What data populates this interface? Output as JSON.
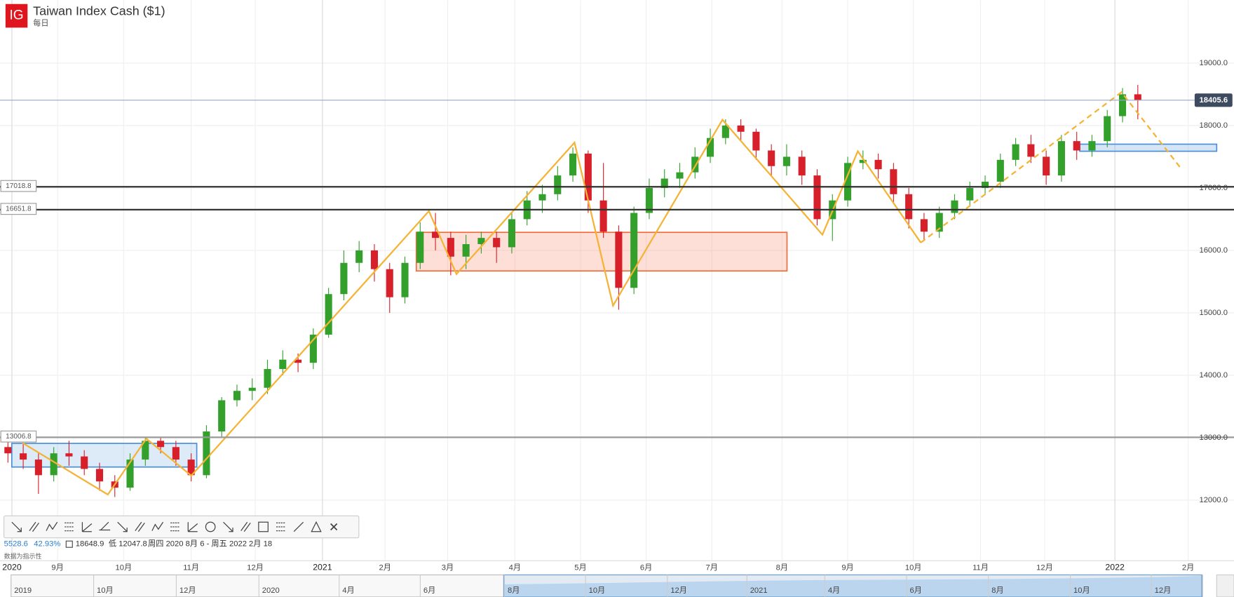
{
  "header": {
    "logo": "IG",
    "title": "Taiwan Index Cash ($1)",
    "interval": "每日"
  },
  "chart_data": {
    "type": "candlestick",
    "open": [
      12850,
      12750,
      12650,
      12400,
      12750,
      12700,
      12500,
      12300,
      12200,
      12650,
      12950,
      12850,
      12650,
      12400,
      13100,
      13600,
      13750,
      13800,
      14100,
      14250,
      14200,
      14650,
      15300,
      15800,
      16000,
      15700,
      15250,
      15800,
      16300,
      16200,
      15900,
      16100,
      16200,
      16050,
      16500,
      16800,
      16900,
      17200,
      17550,
      16800,
      16300,
      15400,
      16600,
      17000,
      17150,
      17250,
      17500,
      17800,
      18000,
      17900,
      17600,
      17350,
      17500,
      17200,
      16500,
      16800,
      17400,
      17450,
      17300,
      16900,
      16500,
      16300,
      16600,
      16800,
      17000,
      17100,
      17450,
      17700,
      17500,
      17200,
      17750,
      17600,
      17750,
      18150,
      18500
    ],
    "high": [
      12950,
      12900,
      12750,
      12850,
      12950,
      12800,
      12600,
      12400,
      12750,
      13000,
      13000,
      12950,
      12750,
      13200,
      13650,
      13850,
      13950,
      14250,
      14400,
      14350,
      14750,
      15400,
      16000,
      16150,
      16100,
      15800,
      15900,
      16450,
      16600,
      16300,
      16250,
      16300,
      16300,
      16600,
      16950,
      17050,
      17350,
      17650,
      17600,
      17400,
      16400,
      16700,
      17150,
      17300,
      17400,
      17650,
      17950,
      18100,
      18100,
      17950,
      17700,
      17700,
      17600,
      17300,
      16900,
      17500,
      17600,
      17550,
      17400,
      17000,
      16600,
      16700,
      16900,
      17100,
      17200,
      17550,
      17800,
      17850,
      17600,
      17850,
      17900,
      17850,
      18250,
      18600,
      18650
    ],
    "low": [
      12600,
      12500,
      12100,
      12300,
      12550,
      12400,
      12150,
      12050,
      12150,
      12550,
      12750,
      12550,
      12300,
      12350,
      13000,
      13500,
      13600,
      13700,
      14000,
      14050,
      14100,
      14600,
      15200,
      15650,
      15500,
      15000,
      15150,
      15700,
      16000,
      15600,
      15700,
      15950,
      15800,
      15950,
      16400,
      16600,
      16800,
      17100,
      16600,
      16200,
      15050,
      15300,
      16500,
      16850,
      17000,
      17150,
      17400,
      17700,
      17750,
      17450,
      17200,
      17200,
      17050,
      16400,
      16150,
      16700,
      17300,
      17150,
      16750,
      16350,
      16150,
      16200,
      16500,
      16700,
      16900,
      17000,
      17350,
      17400,
      17050,
      17100,
      17450,
      17500,
      17650,
      18050,
      18100
    ],
    "close": [
      12750,
      12650,
      12400,
      12750,
      12700,
      12500,
      12300,
      12200,
      12650,
      12950,
      12850,
      12650,
      12400,
      13100,
      13600,
      13750,
      13800,
      14100,
      14250,
      14200,
      14650,
      15300,
      15800,
      16000,
      15700,
      15250,
      15800,
      16300,
      16200,
      15900,
      16100,
      16200,
      16050,
      16500,
      16800,
      16900,
      17200,
      17550,
      16800,
      16300,
      15400,
      16600,
      17000,
      17150,
      17250,
      17500,
      17800,
      18000,
      17900,
      17600,
      17350,
      17500,
      17200,
      16500,
      16800,
      17400,
      17450,
      17300,
      16900,
      16500,
      16300,
      16600,
      16800,
      17000,
      17100,
      17450,
      17700,
      17500,
      17200,
      17750,
      17600,
      17750,
      18150,
      18500,
      18405.6
    ],
    "up_color": "#34a02c",
    "down_color": "#d8202a",
    "xlim": [
      -0.52,
      80.3
    ],
    "xticks": [
      {
        "value": 0.26,
        "label": "2020"
      },
      {
        "value": 3.25,
        "label": "9月"
      },
      {
        "value": 7.58,
        "label": "10月"
      },
      {
        "value": 12.0,
        "label": "11月"
      },
      {
        "value": 16.2,
        "label": "12月"
      },
      {
        "value": 20.6,
        "label": "2021"
      },
      {
        "value": 24.7,
        "label": "2月"
      },
      {
        "value": 28.8,
        "label": "3月"
      },
      {
        "value": 33.2,
        "label": "4月"
      },
      {
        "value": 37.5,
        "label": "5月"
      },
      {
        "value": 41.8,
        "label": "6月"
      },
      {
        "value": 46.1,
        "label": "7月"
      },
      {
        "value": 50.7,
        "label": "8月"
      },
      {
        "value": 55.0,
        "label": "9月"
      },
      {
        "value": 59.3,
        "label": "10月"
      },
      {
        "value": 63.7,
        "label": "11月"
      },
      {
        "value": 67.9,
        "label": "12月"
      },
      {
        "value": 72.5,
        "label": "2022"
      },
      {
        "value": 77.3,
        "label": "2月"
      }
    ],
    "ylim": [
      11030,
      20009
    ],
    "yticks": [
      {
        "value": 12000,
        "label": "12000.0"
      },
      {
        "value": 13000,
        "label": "13000.0"
      },
      {
        "value": 14000,
        "label": "14000.0"
      },
      {
        "value": 15000,
        "label": "15000.0"
      },
      {
        "value": 16000,
        "label": "16000.0"
      },
      {
        "value": 17000,
        "label": "17000.0"
      },
      {
        "value": 18000,
        "label": "18000.0"
      },
      {
        "value": 19000,
        "label": "19000.0"
      }
    ],
    "grid": true,
    "last_price": 18405.6,
    "levels": [
      17018.8,
      16651.8,
      13006.8
    ]
  },
  "info": {
    "change": "5528.6",
    "change_pct": "42.93%",
    "high": "18648.9",
    "low": "低 12047.8",
    "range": "周四 2020 8月 6 - 周五 2022 2月 18",
    "note": "数据为指示性"
  },
  "navigator": {
    "labels": [
      "2019",
      "10月",
      "12月",
      "2020",
      "4月",
      "6月",
      "8月",
      "10月",
      "12月",
      "2021",
      "4月",
      "6月",
      "8月",
      "10月",
      "12月"
    ]
  }
}
